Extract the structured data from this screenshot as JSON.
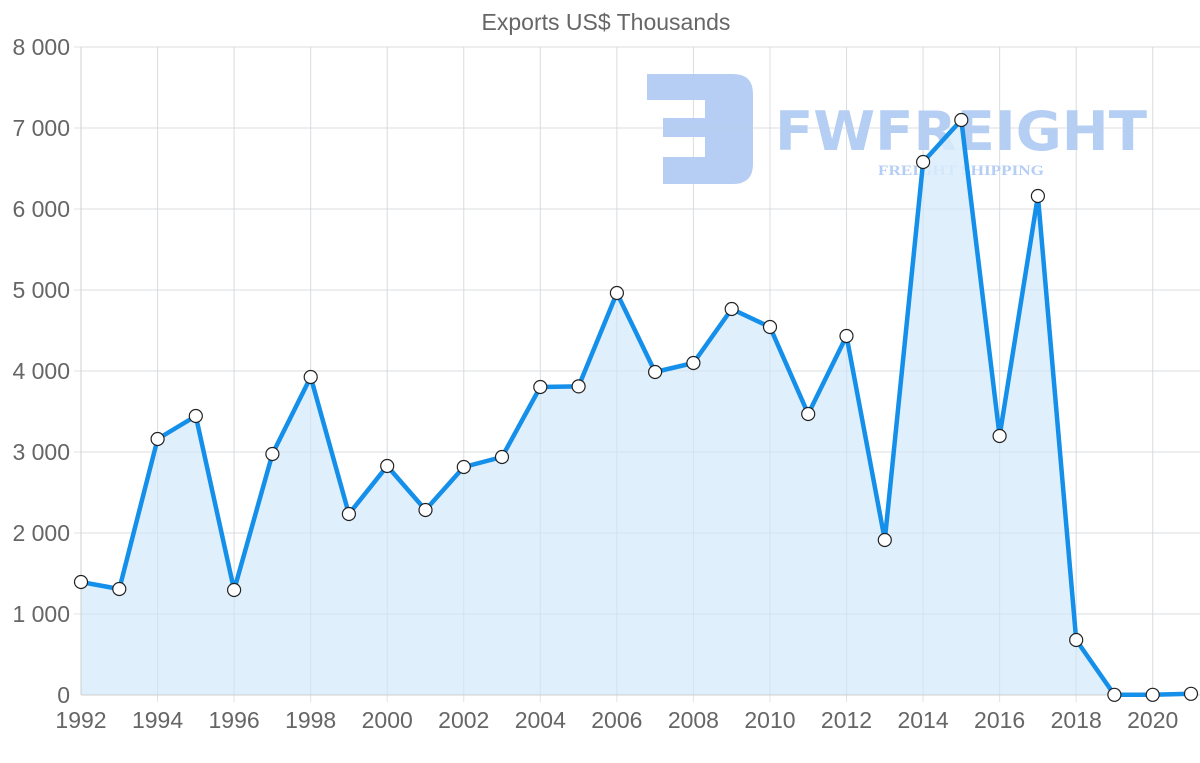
{
  "chart_data": {
    "type": "area",
    "title": "Exports US$ Thousands",
    "xlabel": "",
    "ylabel": "",
    "x": [
      1992,
      1993,
      1994,
      1995,
      1996,
      1997,
      1998,
      1999,
      2000,
      2001,
      2002,
      2003,
      2004,
      2005,
      2006,
      2007,
      2008,
      2009,
      2010,
      2011,
      2012,
      2013,
      2014,
      2015,
      2016,
      2017,
      2018,
      2019,
      2020,
      2021
    ],
    "series": [
      {
        "name": "Exports US$ Thousands",
        "values": [
          1395,
          1309,
          3160,
          3444,
          1296,
          2975,
          3926,
          2235,
          2827,
          2284,
          2815,
          2938,
          3802,
          3810,
          4963,
          3988,
          4099,
          4765,
          4543,
          3469,
          4432,
          1914,
          6580,
          7099,
          3198,
          6160,
          679,
          2,
          3,
          15
        ]
      }
    ],
    "ylim": [
      0,
      8000
    ],
    "yticks": [
      0,
      1000,
      2000,
      3000,
      4000,
      5000,
      6000,
      7000,
      8000
    ],
    "ytick_labels": [
      "0",
      "1 000",
      "2 000",
      "3 000",
      "4 000",
      "5 000",
      "6 000",
      "7 000",
      "8 000"
    ],
    "xticks": [
      1992,
      1994,
      1996,
      1998,
      2000,
      2002,
      2004,
      2006,
      2008,
      2010,
      2012,
      2014,
      2016,
      2018,
      2020
    ],
    "xtick_labels": [
      "1992",
      "1994",
      "1996",
      "1998",
      "2000",
      "2002",
      "2004",
      "2006",
      "2008",
      "2010",
      "2012",
      "2014",
      "2016",
      "2018",
      "2020"
    ],
    "grid": true,
    "legend": "none",
    "colors": {
      "line": "#148fea",
      "fill": "#d9ecfc",
      "point_fill": "#ffffff",
      "point_stroke": "#222222"
    }
  },
  "watermark": {
    "brand": "FWFREIGHT",
    "tagline": "FREIGHT SHIPPING",
    "color": "#a9c6f2"
  }
}
